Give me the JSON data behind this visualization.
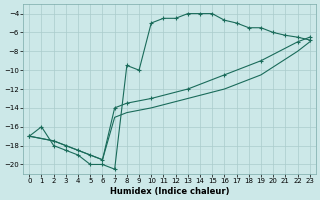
{
  "xlabel": "Humidex (Indice chaleur)",
  "bg_color": "#cce8e8",
  "grid_color": "#aacccc",
  "line_color": "#1a6b5a",
  "xlim": [
    -0.5,
    23.5
  ],
  "ylim": [
    -21,
    -3
  ],
  "xticks": [
    0,
    1,
    2,
    3,
    4,
    5,
    6,
    7,
    8,
    9,
    10,
    11,
    12,
    13,
    14,
    15,
    16,
    17,
    18,
    19,
    20,
    21,
    22,
    23
  ],
  "yticks": [
    -4,
    -6,
    -8,
    -10,
    -12,
    -14,
    -16,
    -18,
    -20
  ],
  "curve1_x": [
    0,
    1,
    2,
    3,
    4,
    5,
    6,
    7,
    8,
    9,
    10,
    11,
    12,
    13,
    14,
    15,
    16,
    17,
    18,
    19,
    20,
    21,
    22,
    23
  ],
  "curve1_y": [
    -17,
    -16,
    -18,
    -18.5,
    -19,
    -20,
    -20,
    -20.5,
    -9.5,
    -10,
    -5,
    -4.5,
    -4.5,
    -4,
    -4,
    -4,
    -4.7,
    -5,
    -5.5,
    -5.5,
    -6,
    -6.3,
    -6.5,
    -6.8
  ],
  "curve2_x": [
    0,
    2,
    3,
    4,
    5,
    6,
    7,
    8,
    10,
    13,
    16,
    19,
    22,
    23
  ],
  "curve2_y": [
    -17,
    -17.5,
    -18,
    -18.5,
    -19,
    -19.5,
    -14,
    -13.5,
    -13,
    -12,
    -10.5,
    -9,
    -7,
    -6.5
  ],
  "curve3_x": [
    0,
    2,
    3,
    4,
    5,
    6,
    7,
    8,
    10,
    13,
    16,
    19,
    22,
    23
  ],
  "curve3_y": [
    -17,
    -17.5,
    -18,
    -18.5,
    -19,
    -19.5,
    -15,
    -14.5,
    -14,
    -13,
    -12,
    -10.5,
    -8,
    -7
  ],
  "xlabel_fontsize": 6,
  "tick_fontsize": 5
}
